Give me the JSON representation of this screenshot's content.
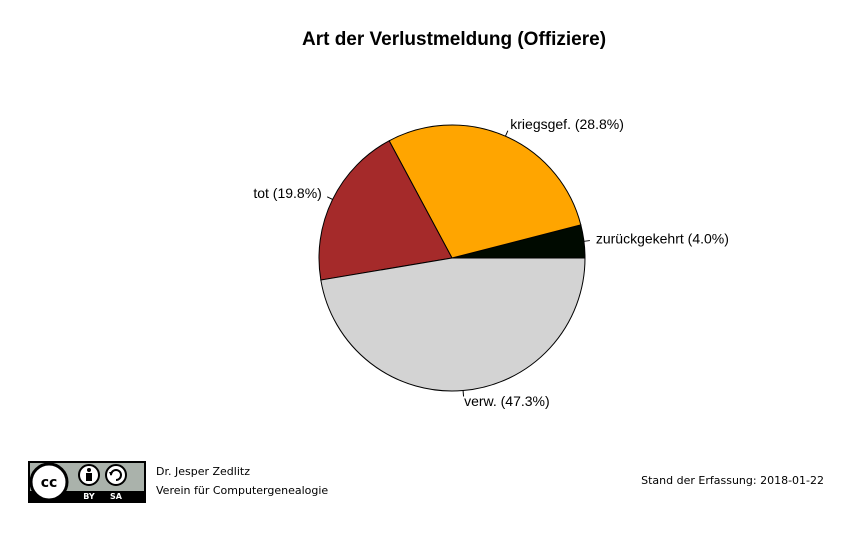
{
  "chart_data": {
    "type": "pie",
    "title": "Art der Verlustmeldung (Offiziere)",
    "start_angle_deg": 0,
    "direction": "counterclockwise",
    "slices": [
      {
        "label": "zurückgekehrt (4.0%)",
        "value": 4.0,
        "color": "#000a00"
      },
      {
        "label": "kriegsgef. (28.8%)",
        "value": 28.8,
        "color": "#ffa500"
      },
      {
        "label": "tot (19.8%)",
        "value": 19.8,
        "color": "#a52a2a"
      },
      {
        "label": "verw. (47.3%)",
        "value": 47.3,
        "color": "#d3d3d3"
      }
    ]
  },
  "footer": {
    "author": "Dr. Jesper Zedlitz",
    "organization": "Verein für Computergenealogie",
    "stand": "Stand der Erfassung: 2018-01-22"
  },
  "license": {
    "icon": "cc-by-sa-icon",
    "text": "cc BY SA"
  }
}
